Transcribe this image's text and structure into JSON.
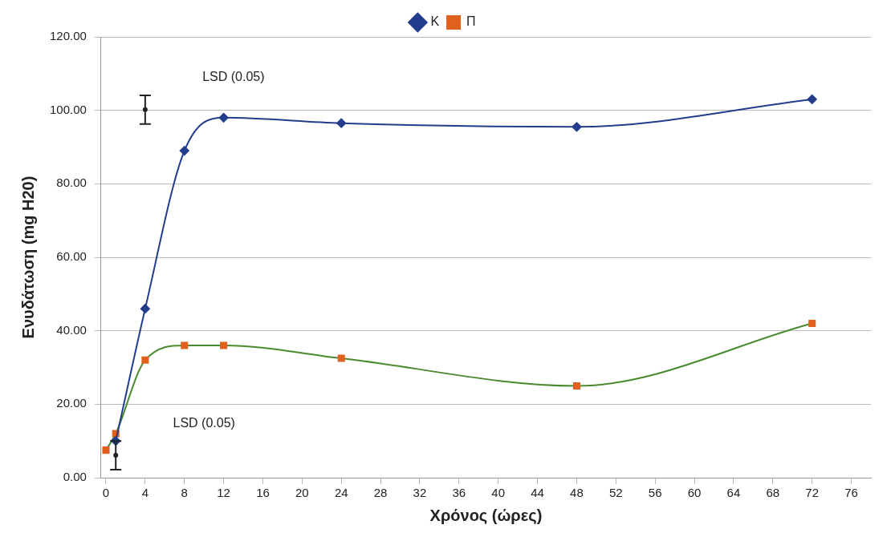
{
  "chart_data": {
    "type": "line",
    "xlabel": "Χρόνος (ώρες)",
    "ylabel": "Ενυδάτωση (mg H20)",
    "xlim": [
      -0.5,
      78
    ],
    "xticks": [
      0,
      4,
      8,
      12,
      16,
      20,
      24,
      28,
      32,
      36,
      40,
      44,
      48,
      52,
      56,
      60,
      64,
      68,
      72,
      76
    ],
    "ylim": [
      0,
      120
    ],
    "yticks": [
      {
        "value": 0,
        "label": "0.00"
      },
      {
        "value": 20,
        "label": "20.00"
      },
      {
        "value": 40,
        "label": "40.00"
      },
      {
        "value": 60,
        "label": "60.00"
      },
      {
        "value": 80,
        "label": "80.00"
      },
      {
        "value": 100,
        "label": "100.00"
      },
      {
        "value": 120,
        "label": "120.00"
      }
    ],
    "grid": "y",
    "legend": "top",
    "line_style": "solid",
    "series": [
      {
        "name": "Κ",
        "color": "#233d8c",
        "marker": "diamond",
        "x": [
          1,
          4,
          8,
          12,
          24,
          48,
          72
        ],
        "values": [
          10,
          46,
          89,
          98,
          96.5,
          95.5,
          103
        ]
      },
      {
        "name": "Π",
        "color": "#4a8a2e",
        "colors": [
          "#e0601e",
          "#e0601e",
          "#e0601e",
          "#e0601e",
          "#e0601e",
          "#e0601e",
          "#e0601e",
          "#e0601e"
        ],
        "marker": "square",
        "x": [
          0,
          1,
          4,
          8,
          12,
          24,
          48,
          72
        ],
        "values": [
          7.5,
          12,
          32,
          36,
          36,
          32.5,
          25,
          42
        ]
      },
      {
        "type": "scatter",
        "color": "#222222",
        "marker": "circle",
        "x": [
          4
        ],
        "values": [
          100.2
        ],
        "errors": [
          [
            96.3,
            104.1
          ]
        ]
      },
      {
        "type": "scatter",
        "color": "#222222",
        "marker": "circle",
        "x": [
          1
        ],
        "values": [
          6.1
        ],
        "errors": [
          [
            2.2,
            10
          ]
        ]
      }
    ],
    "annotations": [
      "LSD (0.05)",
      "LSD (0.05)"
    ]
  }
}
